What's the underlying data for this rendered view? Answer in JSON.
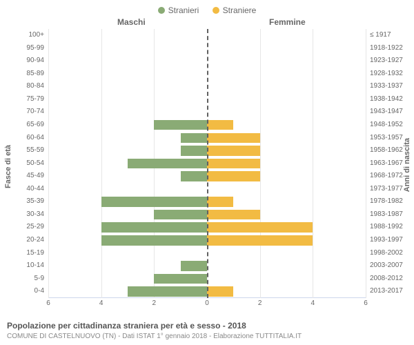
{
  "legend": {
    "male": "Stranieri",
    "female": "Straniere"
  },
  "headers": {
    "left": "Maschi",
    "right": "Femmine"
  },
  "axis_titles": {
    "left": "Fasce di età",
    "right": "Anni di nascita"
  },
  "colors": {
    "male_bar": "#8aab75",
    "female_bar": "#f2bb43",
    "grid": "#e6e6e6",
    "zero": "#606060",
    "background": "#ffffff"
  },
  "x": {
    "min": -6,
    "max": 6,
    "ticks": [
      -6,
      -4,
      -2,
      0,
      2,
      4,
      6
    ],
    "tick_labels": [
      "6",
      "4",
      "2",
      "0",
      "2",
      "4",
      "6"
    ]
  },
  "rows": [
    {
      "age": "100+",
      "birth": "≤ 1917",
      "m": 0,
      "f": 0
    },
    {
      "age": "95-99",
      "birth": "1918-1922",
      "m": 0,
      "f": 0
    },
    {
      "age": "90-94",
      "birth": "1923-1927",
      "m": 0,
      "f": 0
    },
    {
      "age": "85-89",
      "birth": "1928-1932",
      "m": 0,
      "f": 0
    },
    {
      "age": "80-84",
      "birth": "1933-1937",
      "m": 0,
      "f": 0
    },
    {
      "age": "75-79",
      "birth": "1938-1942",
      "m": 0,
      "f": 0
    },
    {
      "age": "70-74",
      "birth": "1943-1947",
      "m": 0,
      "f": 0
    },
    {
      "age": "65-69",
      "birth": "1948-1952",
      "m": 2,
      "f": 1
    },
    {
      "age": "60-64",
      "birth": "1953-1957",
      "m": 1,
      "f": 2
    },
    {
      "age": "55-59",
      "birth": "1958-1962",
      "m": 1,
      "f": 2
    },
    {
      "age": "50-54",
      "birth": "1963-1967",
      "m": 3,
      "f": 2
    },
    {
      "age": "45-49",
      "birth": "1968-1972",
      "m": 1,
      "f": 2
    },
    {
      "age": "40-44",
      "birth": "1973-1977",
      "m": 0,
      "f": 0
    },
    {
      "age": "35-39",
      "birth": "1978-1982",
      "m": 4,
      "f": 1
    },
    {
      "age": "30-34",
      "birth": "1983-1987",
      "m": 2,
      "f": 2
    },
    {
      "age": "25-29",
      "birth": "1988-1992",
      "m": 4,
      "f": 4
    },
    {
      "age": "20-24",
      "birth": "1993-1997",
      "m": 4,
      "f": 4
    },
    {
      "age": "15-19",
      "birth": "1998-2002",
      "m": 0,
      "f": 0
    },
    {
      "age": "10-14",
      "birth": "2003-2007",
      "m": 1,
      "f": 0
    },
    {
      "age": "5-9",
      "birth": "2008-2012",
      "m": 2,
      "f": 0
    },
    {
      "age": "0-4",
      "birth": "2013-2017",
      "m": 3,
      "f": 1
    }
  ],
  "footer": {
    "title": "Popolazione per cittadinanza straniera per età e sesso - 2018",
    "sub": "COMUNE DI CASTELNUOVO (TN) - Dati ISTAT 1° gennaio 2018 - Elaborazione TUTTITALIA.IT"
  }
}
